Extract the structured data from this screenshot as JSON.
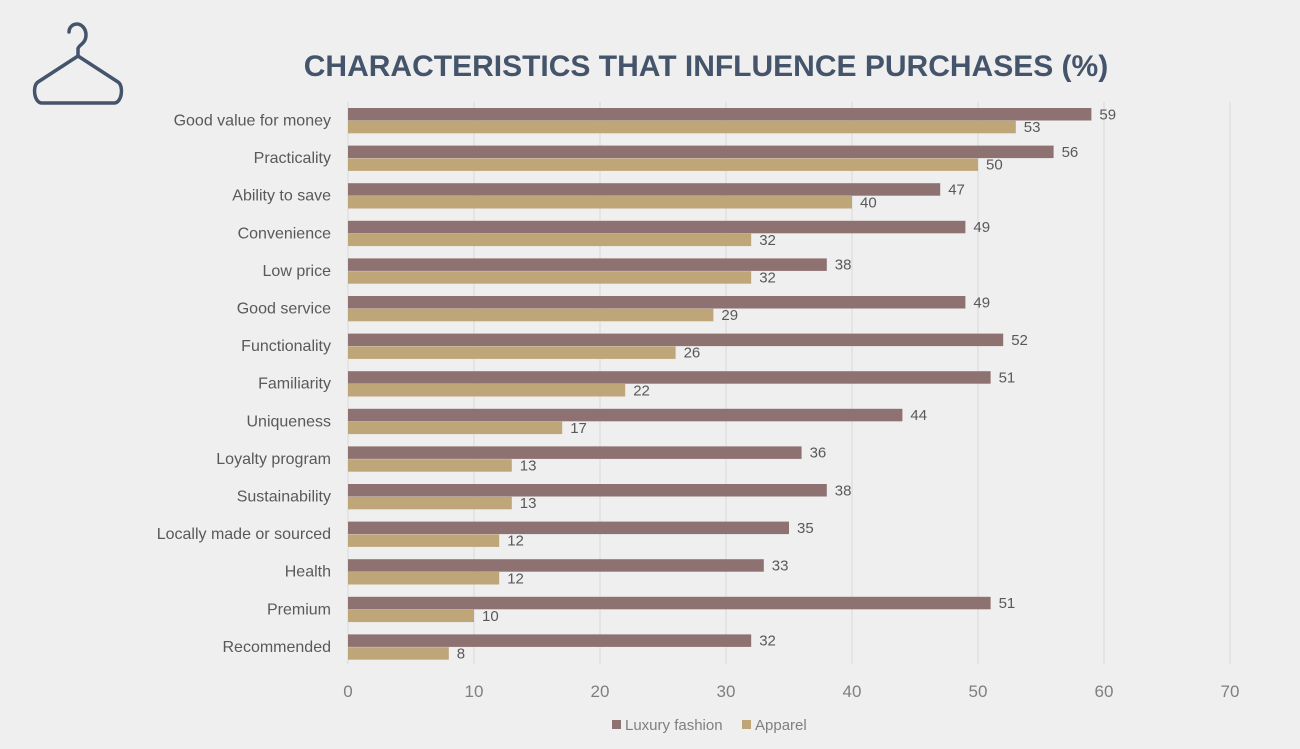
{
  "chart_data": {
    "type": "bar",
    "orientation": "horizontal",
    "title": "CHARACTERISTICS THAT INFLUENCE PURCHASES (%)",
    "categories": [
      "Good value for money",
      "Practicality",
      "Ability to save",
      "Convenience",
      "Low price",
      "Good service",
      "Functionality",
      "Familiarity",
      "Uniqueness",
      "Loyalty program",
      "Sustainability",
      "Locally made or sourced",
      "Health",
      "Premium",
      "Recommended"
    ],
    "series": [
      {
        "name": "Luxury fashion",
        "color": "#8e7171",
        "values": [
          59,
          56,
          47,
          49,
          38,
          49,
          52,
          51,
          44,
          36,
          38,
          35,
          33,
          51,
          32
        ]
      },
      {
        "name": "Apparel",
        "color": "#bfa679",
        "values": [
          53,
          50,
          40,
          32,
          32,
          29,
          26,
          22,
          17,
          13,
          13,
          12,
          12,
          10,
          8
        ]
      }
    ],
    "xlim": [
      0,
      70
    ],
    "xticks": [
      0,
      10,
      20,
      30,
      40,
      50,
      60,
      70
    ],
    "grid": true,
    "legend_position": "bottom-center",
    "xlabel": "",
    "ylabel": ""
  },
  "logo": {
    "icon": "hanger-icon",
    "color": "#44546a"
  }
}
